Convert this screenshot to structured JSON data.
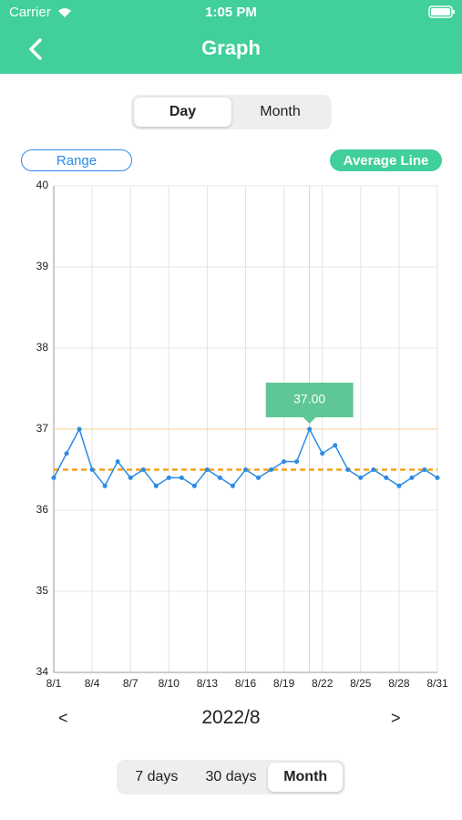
{
  "status_bar": {
    "carrier": "Carrier",
    "time": "1:05 PM"
  },
  "nav": {
    "title": "Graph"
  },
  "view_toggle": {
    "options": [
      "Day",
      "Month"
    ],
    "selected": 0
  },
  "buttons": {
    "range": "Range",
    "average_line": "Average Line"
  },
  "period": {
    "prev": "<",
    "label": "2022/8",
    "next": ">"
  },
  "range_toggle": {
    "options": [
      "7 days",
      "30 days",
      "Month"
    ],
    "selected": 2
  },
  "chart_data": {
    "type": "line",
    "categories": [
      "8/1",
      null,
      null,
      "8/4",
      null,
      null,
      "8/7",
      null,
      null,
      "8/10",
      null,
      null,
      "8/13",
      null,
      null,
      "8/16",
      null,
      null,
      "8/19",
      null,
      null,
      "8/22",
      null,
      null,
      "8/25",
      null,
      null,
      "8/28",
      null,
      null,
      "8/31"
    ],
    "values": [
      36.4,
      36.7,
      37.0,
      36.5,
      36.3,
      36.6,
      36.4,
      36.5,
      36.3,
      36.4,
      36.4,
      36.3,
      36.5,
      36.4,
      36.3,
      36.5,
      36.4,
      36.5,
      36.6,
      36.6,
      37.0,
      36.7,
      36.8,
      36.5,
      36.4,
      36.5,
      36.4,
      36.3,
      36.4,
      36.5,
      36.4
    ],
    "color": "#2b8be6",
    "ylim": [
      34,
      40
    ],
    "yticks": [
      34,
      35,
      36,
      37,
      38,
      39,
      40
    ],
    "grid": true,
    "average": 36.5,
    "average_color": "#f5a21f",
    "highlight": {
      "x_index": 20,
      "value": 37,
      "label": "37.00",
      "color": "#5fc795"
    }
  }
}
